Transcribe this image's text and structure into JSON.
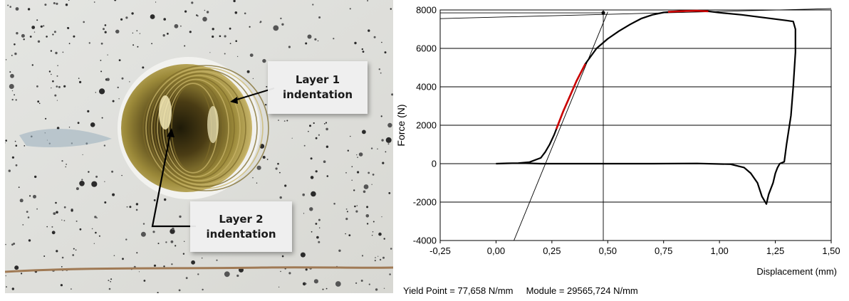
{
  "photo": {
    "callouts": [
      {
        "line1": "Layer 1",
        "line2": "indentation"
      },
      {
        "line1": "Layer 2",
        "line2": "indentation"
      }
    ]
  },
  "chart_data": {
    "type": "line",
    "xlabel": "Displacement (mm)",
    "ylabel": "Force (N)",
    "xlim": [
      -0.25,
      1.5
    ],
    "ylim": [
      -4000,
      8000
    ],
    "x_ticks": [
      -0.25,
      0.0,
      0.25,
      0.5,
      0.75,
      1.0,
      1.25,
      1.5
    ],
    "x_tick_labels": [
      "-0,25",
      "0,00",
      "0,25",
      "0,50",
      "0,75",
      "1,00",
      "1,25",
      "1,50"
    ],
    "y_ticks": [
      -4000,
      -2000,
      0,
      2000,
      4000,
      6000,
      8000
    ],
    "y_tick_labels": [
      "-4000",
      "-2000",
      "0",
      "2000",
      "4000",
      "6000",
      "8000"
    ],
    "grid": "horizontal",
    "colors": {
      "curve": "#000000",
      "highlight": "#cc0000",
      "lines": "#000000"
    },
    "series": [
      {
        "x": [
          0.0,
          0.1,
          0.15,
          0.2,
          0.22,
          0.24,
          0.26,
          0.28,
          0.3,
          0.33,
          0.36,
          0.4,
          0.45,
          0.5,
          0.55,
          0.6,
          0.65,
          0.7,
          0.75,
          0.8,
          0.85,
          0.9,
          0.95,
          1.0,
          1.1,
          1.2,
          1.3,
          1.33,
          1.34,
          1.34,
          1.33,
          1.32,
          1.3,
          1.29,
          1.28,
          1.27,
          1.26,
          1.25,
          1.24,
          1.22,
          1.21,
          1.19,
          1.17,
          1.14,
          1.11,
          1.05,
          0.9,
          0.7,
          0.5,
          0.3,
          0.2,
          0.15,
          0.1,
          0.05,
          0.0
        ],
        "y": [
          0,
          30,
          80,
          300,
          600,
          1000,
          1500,
          2100,
          2700,
          3500,
          4300,
          5200,
          6000,
          6500,
          6900,
          7250,
          7550,
          7750,
          7870,
          7920,
          7950,
          7960,
          7930,
          7860,
          7750,
          7600,
          7450,
          7400,
          7000,
          5800,
          4000,
          2500,
          1000,
          100,
          50,
          0,
          -200,
          -500,
          -1000,
          -1600,
          -2100,
          -1700,
          -1000,
          -500,
          -200,
          -30,
          10,
          0,
          0,
          0,
          0,
          20,
          30,
          20,
          0
        ]
      }
    ],
    "highlight_segments": [
      {
        "x": [
          0.27,
          0.3,
          0.33,
          0.36,
          0.4
        ],
        "y": [
          1800,
          2700,
          3500,
          4300,
          5200
        ]
      },
      {
        "x": [
          0.77,
          0.8,
          0.85,
          0.9,
          0.95
        ],
        "y": [
          7900,
          7920,
          7950,
          7960,
          7930
        ]
      }
    ],
    "reference_lines": [
      {
        "x": [
          -0.25,
          1.5
        ],
        "y": [
          7550,
          8070
        ]
      },
      {
        "x": [
          0.08,
          0.5
        ],
        "y": [
          -4000,
          7900
        ]
      },
      {
        "x": [
          0.48,
          0.48
        ],
        "y": [
          -4000,
          8000
        ]
      },
      {
        "x": [
          -0.25,
          0.48
        ],
        "y": [
          7850,
          7850
        ]
      }
    ],
    "markers": [
      {
        "x": 0.48,
        "y": 7850
      }
    ],
    "footer": {
      "yield_point": "Yield Point = 77,658 N/mm",
      "module": "Module = 29565,724 N/mm"
    }
  }
}
